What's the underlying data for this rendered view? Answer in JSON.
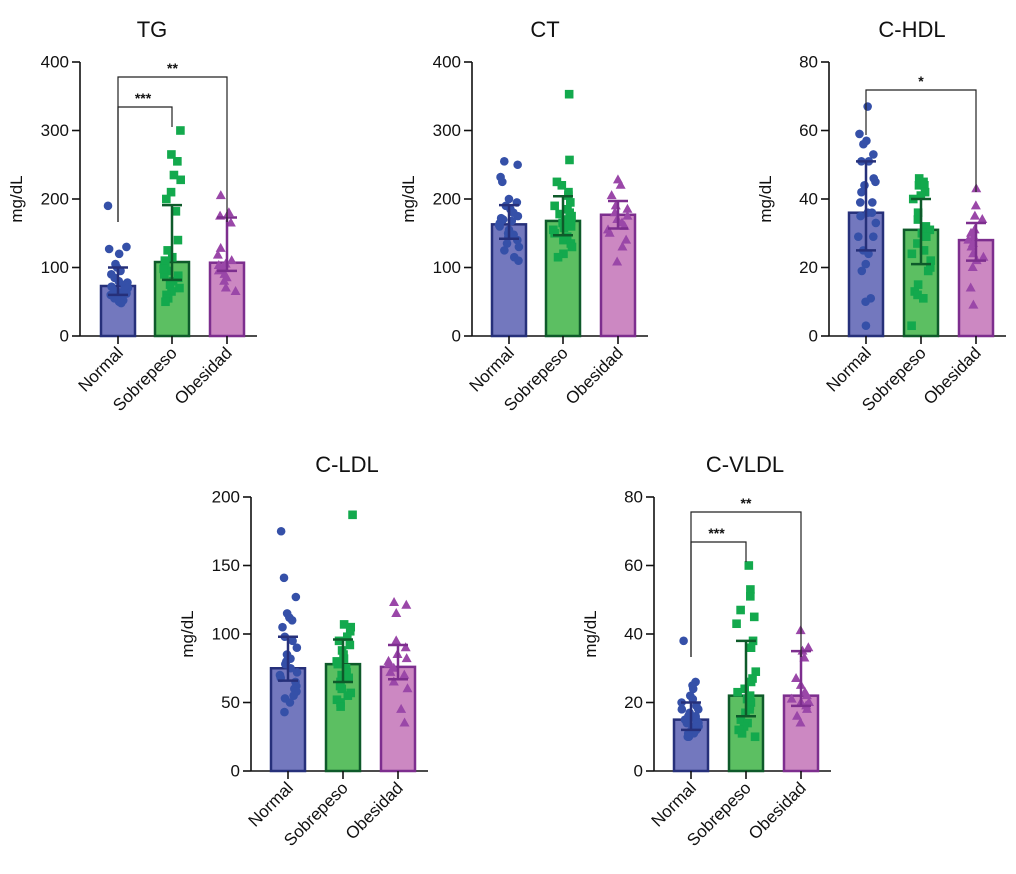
{
  "figure": {
    "groups": [
      "Normal",
      "Sobrepeso",
      "Obesidad"
    ],
    "colors": {
      "Normal": {
        "fill": "#7378BE",
        "edge": "#26307A",
        "marker": "#3550A8",
        "shape": "circle"
      },
      "Sobrepeso": {
        "fill": "#5CBF62",
        "edge": "#0E5A2A",
        "marker": "#13A94D",
        "shape": "square"
      },
      "Obesidad": {
        "fill": "#CC88C2",
        "edge": "#7D2E8E",
        "marker": "#9A47A8",
        "shape": "triangle"
      }
    }
  },
  "chart_data": [
    {
      "id": "tg",
      "type": "bar",
      "title": "TG",
      "ylabel": "mg/dL",
      "xlabel": "",
      "ylim": [
        0,
        400
      ],
      "yticks": [
        0,
        100,
        200,
        300,
        400
      ],
      "categories": [
        "Normal",
        "Sobrepeso",
        "Obesidad"
      ],
      "values": [
        73,
        108,
        107
      ],
      "error": [
        [
          60,
          100
        ],
        [
          82,
          191
        ],
        [
          95,
          173
        ]
      ],
      "points": [
        [
          190,
          130,
          127,
          120,
          105,
          100,
          95,
          90,
          85,
          80,
          78,
          75,
          72,
          70,
          68,
          65,
          62,
          60,
          58,
          55,
          52,
          50,
          48,
          55,
          60,
          65
        ],
        [
          300,
          265,
          255,
          235,
          228,
          210,
          200,
          182,
          140,
          125,
          115,
          110,
          100,
          95,
          90,
          85,
          80,
          75,
          70,
          65,
          60,
          55,
          50,
          105,
          98,
          88
        ],
        [
          205,
          180,
          175,
          165,
          128,
          118,
          110,
          105,
          103,
          100,
          95,
          90,
          85,
          80,
          70,
          65
        ]
      ],
      "significance": [
        {
          "from": "Normal",
          "to": "Sobrepeso",
          "label": "***"
        },
        {
          "from": "Normal",
          "to": "Obesidad",
          "label": "**"
        }
      ]
    },
    {
      "id": "ct",
      "type": "bar",
      "title": "CT",
      "ylabel": "mg/dL",
      "xlabel": "",
      "ylim": [
        0,
        400
      ],
      "yticks": [
        0,
        100,
        200,
        300,
        400
      ],
      "categories": [
        "Normal",
        "Sobrepeso",
        "Obesidad"
      ],
      "values": [
        163,
        168,
        177
      ],
      "error": [
        [
          142,
          191
        ],
        [
          147,
          204
        ],
        [
          157,
          197
        ]
      ],
      "points": [
        [
          255,
          250,
          232,
          225,
          200,
          195,
          190,
          185,
          180,
          175,
          170,
          168,
          165,
          160,
          155,
          150,
          145,
          140,
          135,
          130,
          125,
          115,
          110,
          172,
          162,
          148
        ],
        [
          353,
          257,
          225,
          220,
          210,
          205,
          195,
          190,
          185,
          180,
          175,
          170,
          165,
          160,
          155,
          150,
          145,
          140,
          135,
          130,
          120,
          115,
          178,
          168,
          158
        ],
        [
          228,
          220,
          205,
          190,
          185,
          180,
          175,
          170,
          165,
          160,
          155,
          150,
          140,
          130,
          108
        ]
      ],
      "significance": []
    },
    {
      "id": "c-hdl",
      "type": "bar",
      "title": "C-HDL",
      "ylabel": "mg/dL",
      "xlabel": "",
      "ylim": [
        0,
        80
      ],
      "yticks": [
        0,
        20,
        40,
        60,
        80
      ],
      "categories": [
        "Normal",
        "Sobrepeso",
        "Obesidad"
      ],
      "values": [
        36,
        31,
        28
      ],
      "error": [
        [
          25,
          51
        ],
        [
          21,
          40
        ],
        [
          22,
          33
        ]
      ],
      "points": [
        [
          67,
          59,
          57,
          56,
          53,
          51,
          51,
          46,
          45,
          44,
          42,
          39,
          39,
          36,
          36,
          35,
          33,
          29,
          29,
          25,
          24,
          21,
          19,
          11,
          10,
          3
        ],
        [
          46,
          45,
          44,
          44,
          42,
          41,
          40,
          36,
          34,
          32,
          31,
          30,
          30,
          29,
          27,
          25,
          24,
          22,
          20,
          19,
          15,
          13,
          12,
          11,
          3
        ],
        [
          43,
          38,
          35,
          34,
          31,
          30,
          29,
          28,
          27,
          26,
          24,
          23,
          22,
          20,
          14,
          9
        ]
      ],
      "significance": [
        {
          "from": "Normal",
          "to": "Obesidad",
          "label": "*"
        }
      ]
    },
    {
      "id": "c-ldl",
      "type": "bar",
      "title": "C-LDL",
      "ylabel": "mg/dL",
      "xlabel": "",
      "ylim": [
        0,
        200
      ],
      "yticks": [
        0,
        50,
        100,
        150,
        200
      ],
      "categories": [
        "Normal",
        "Sobrepeso",
        "Obesidad"
      ],
      "values": [
        75,
        78,
        76
      ],
      "error": [
        [
          66,
          98
        ],
        [
          65,
          96
        ],
        [
          67,
          92
        ]
      ],
      "points": [
        [
          175,
          141,
          127,
          115,
          112,
          110,
          105,
          98,
          95,
          90,
          85,
          82,
          80,
          78,
          75,
          72,
          70,
          68,
          65,
          62,
          60,
          58,
          55,
          53,
          50,
          43
        ],
        [
          187,
          107,
          105,
          102,
          98,
          95,
          92,
          88,
          85,
          82,
          80,
          78,
          75,
          72,
          70,
          68,
          65,
          62,
          60,
          57,
          55,
          52,
          50,
          47
        ],
        [
          123,
          121,
          115,
          95,
          90,
          85,
          82,
          80,
          78,
          75,
          72,
          70,
          65,
          60,
          45,
          35
        ]
      ],
      "significance": []
    },
    {
      "id": "c-vldl",
      "type": "bar",
      "title": "C-VLDL",
      "ylabel": "mg/dL",
      "xlabel": "",
      "ylim": [
        0,
        80
      ],
      "yticks": [
        0,
        20,
        40,
        60,
        80
      ],
      "categories": [
        "Normal",
        "Sobrepeso",
        "Obesidad"
      ],
      "values": [
        15,
        22,
        22
      ],
      "error": [
        [
          12,
          20
        ],
        [
          16,
          38
        ],
        [
          19,
          35
        ]
      ],
      "points": [
        [
          38,
          26,
          25,
          24,
          22,
          21,
          20,
          19,
          18,
          17,
          16,
          15,
          15,
          14,
          14,
          13,
          13,
          12,
          12,
          11,
          11,
          10,
          10,
          16,
          18
        ],
        [
          60,
          53,
          51,
          47,
          45,
          43,
          38,
          36,
          29,
          27,
          26,
          24,
          23,
          22,
          21,
          20,
          19,
          18,
          17,
          15,
          14,
          13,
          12,
          11,
          10
        ],
        [
          41,
          36,
          35,
          33,
          27,
          25,
          23,
          22,
          21,
          20,
          20,
          19,
          18,
          16,
          14
        ]
      ],
      "significance": [
        {
          "from": "Normal",
          "to": "Sobrepeso",
          "label": "***"
        },
        {
          "from": "Normal",
          "to": "Obesidad",
          "label": "**"
        }
      ]
    }
  ]
}
